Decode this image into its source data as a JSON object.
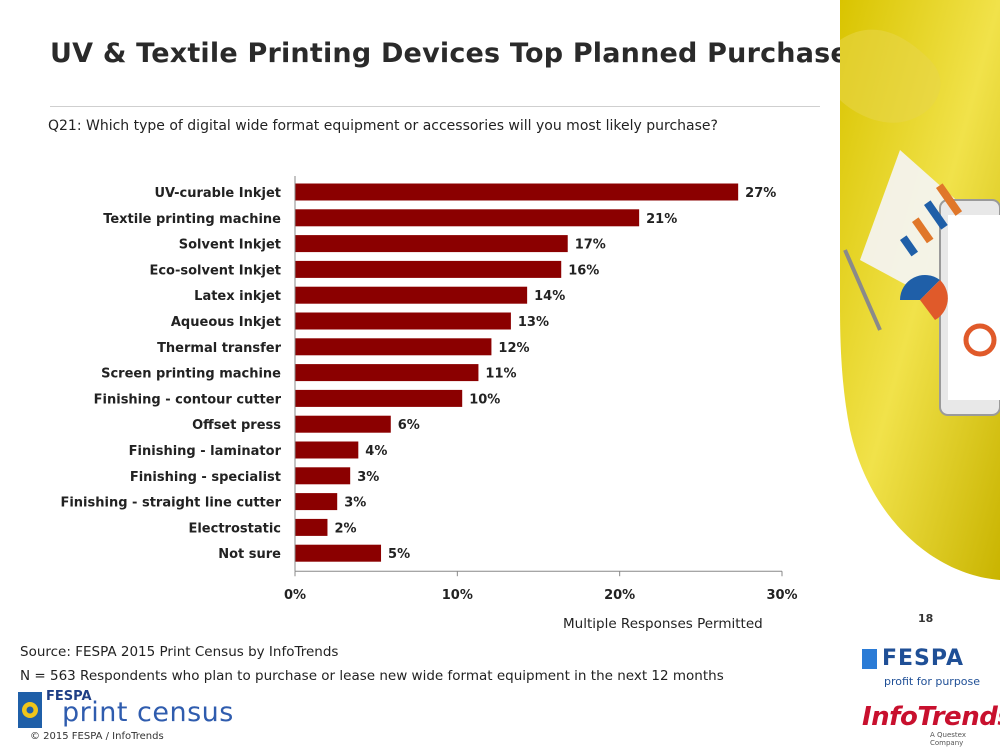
{
  "title": "UV & Textile Printing Devices Top Planned Purchases",
  "question": "Q21: Which type of digital wide format equipment or accessories will you most likely purchase?",
  "note": "Multiple Responses Permitted",
  "page_number": "18",
  "source": "Source: FESPA 2015 Print Census by InfoTrends",
  "sample": "N = 563 Respondents who plan to purchase or lease new wide format equipment in the next 12 months",
  "copyright": "© 2015 FESPA  / InfoTrends",
  "logos": {
    "census_top": "FESPA",
    "census_main": "print census",
    "fespa": "FESPA",
    "fespa_tagline": "profit for purpose",
    "infotrends": "InfoTrends",
    "infotrends_sub": "A Questex Company"
  },
  "colors": {
    "bar": "#8b0000",
    "title": "#2a2a2a",
    "accent_yellow": "#e6d21a"
  },
  "chart_data": {
    "type": "bar",
    "orientation": "horizontal",
    "categories": [
      "UV-curable Inkjet",
      "Textile printing machine",
      "Solvent Inkjet",
      "Eco-solvent Inkjet",
      "Latex inkjet",
      "Aqueous Inkjet",
      "Thermal transfer",
      "Screen printing machine",
      "Finishing - contour cutter",
      "Offset press",
      "Finishing - laminator",
      "Finishing - specialist",
      "Finishing - straight line cutter",
      "Electrostatic",
      "Not sure"
    ],
    "values": [
      27.3,
      21.2,
      16.8,
      16.4,
      14.3,
      13.3,
      12.1,
      11.3,
      10.3,
      5.9,
      3.9,
      3.4,
      2.6,
      2.0,
      5.3
    ],
    "data_labels": [
      "27%",
      "21%",
      "17%",
      "16%",
      "14%",
      "13%",
      "12%",
      "11%",
      "10%",
      "6%",
      "4%",
      "3%",
      "3%",
      "2%",
      "5%"
    ],
    "xlim": [
      0,
      30
    ],
    "xticks": [
      0,
      10,
      20,
      30
    ],
    "xtick_labels": [
      "0%",
      "10%",
      "20%",
      "30%"
    ],
    "grid": false,
    "legend": "none"
  }
}
